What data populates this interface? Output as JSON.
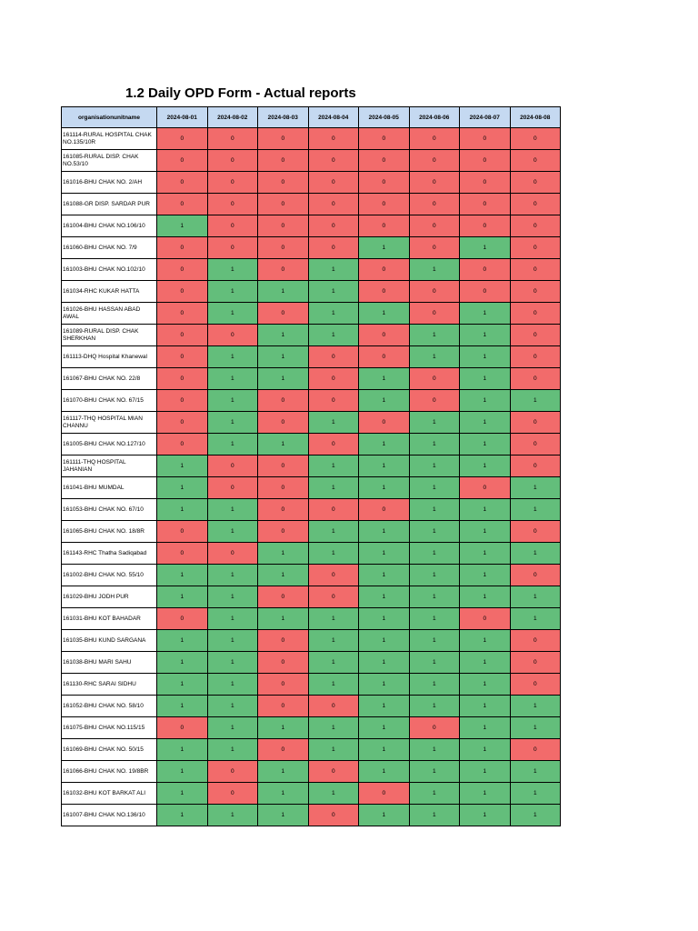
{
  "title": "1.2 Daily OPD Form - Actual reports",
  "colors": {
    "zero": "#f26b6b",
    "one": "#63be7b",
    "header": "#c5d9f1"
  },
  "columns": [
    "organisationunitname",
    "2024-08-01",
    "2024-08-02",
    "2024-08-03",
    "2024-08-04",
    "2024-08-05",
    "2024-08-06",
    "2024-08-07",
    "2024-08-08"
  ],
  "rows": [
    {
      "name": "161114-RURAL HOSPITAL CHAK NO.135/10R",
      "values": [
        0,
        0,
        0,
        0,
        0,
        0,
        0,
        0
      ]
    },
    {
      "name": "161085-RURAL DISP. CHAK NO.53/10",
      "values": [
        0,
        0,
        0,
        0,
        0,
        0,
        0,
        0
      ]
    },
    {
      "name": "161016-BHU CHAK NO.  2/AH",
      "values": [
        0,
        0,
        0,
        0,
        0,
        0,
        0,
        0
      ]
    },
    {
      "name": "161088-GR DISP. SARDAR PUR",
      "values": [
        0,
        0,
        0,
        0,
        0,
        0,
        0,
        0
      ]
    },
    {
      "name": "161004-BHU CHAK NO.106/10",
      "values": [
        1,
        0,
        0,
        0,
        0,
        0,
        0,
        0
      ]
    },
    {
      "name": "161060-BHU CHAK NO.  7/9",
      "values": [
        0,
        0,
        0,
        0,
        1,
        0,
        1,
        0
      ]
    },
    {
      "name": "161003-BHU CHAK NO.102/10",
      "values": [
        0,
        1,
        0,
        1,
        0,
        1,
        0,
        0
      ]
    },
    {
      "name": "161034-RHC KUKAR HATTA",
      "values": [
        0,
        1,
        1,
        1,
        0,
        0,
        0,
        0
      ]
    },
    {
      "name": "161026-BHU HASSAN ABAD AWAL",
      "values": [
        0,
        1,
        0,
        1,
        1,
        0,
        1,
        0
      ]
    },
    {
      "name": "161089-RURAL DISP. CHAK SHERKHAN",
      "values": [
        0,
        0,
        1,
        1,
        0,
        1,
        1,
        0
      ]
    },
    {
      "name": "161113-DHQ Hospital Khanewal",
      "values": [
        0,
        1,
        1,
        0,
        0,
        1,
        1,
        0
      ]
    },
    {
      "name": "161067-BHU CHAK NO. 22/8",
      "values": [
        0,
        1,
        1,
        0,
        1,
        0,
        1,
        0
      ]
    },
    {
      "name": "161070-BHU CHAK NO. 67/15",
      "values": [
        0,
        1,
        0,
        0,
        1,
        0,
        1,
        1
      ]
    },
    {
      "name": "161117-THQ HOSPITAL MIAN CHANNU",
      "values": [
        0,
        1,
        0,
        1,
        0,
        1,
        1,
        0
      ]
    },
    {
      "name": "161005-BHU CHAK NO.127/10",
      "values": [
        0,
        1,
        1,
        0,
        1,
        1,
        1,
        0
      ]
    },
    {
      "name": "161111-THQ HOSPITAL JAHANIAN",
      "values": [
        1,
        0,
        0,
        1,
        1,
        1,
        1,
        0
      ]
    },
    {
      "name": "161041-BHU MUMDAL",
      "values": [
        1,
        0,
        0,
        1,
        1,
        1,
        0,
        1
      ]
    },
    {
      "name": "161053-BHU CHAK NO. 67/10",
      "values": [
        1,
        1,
        0,
        0,
        0,
        1,
        1,
        1
      ]
    },
    {
      "name": "161065-BHU CHAK NO. 18/8R",
      "values": [
        0,
        1,
        0,
        1,
        1,
        1,
        1,
        0
      ]
    },
    {
      "name": "161143-RHC Thatha Sadiqabad",
      "values": [
        0,
        0,
        1,
        1,
        1,
        1,
        1,
        1
      ]
    },
    {
      "name": "161002-BHU CHAK NO. 55/10",
      "values": [
        1,
        1,
        1,
        0,
        1,
        1,
        1,
        0
      ]
    },
    {
      "name": "161029-BHU JODH PUR",
      "values": [
        1,
        1,
        0,
        0,
        1,
        1,
        1,
        1
      ]
    },
    {
      "name": "161031-BHU KOT BAHADAR",
      "values": [
        0,
        1,
        1,
        1,
        1,
        1,
        0,
        1
      ]
    },
    {
      "name": "161035-BHU KUND SARGANA",
      "values": [
        1,
        1,
        0,
        1,
        1,
        1,
        1,
        0
      ]
    },
    {
      "name": "161038-BHU MARI SAHU",
      "values": [
        1,
        1,
        0,
        1,
        1,
        1,
        1,
        0
      ]
    },
    {
      "name": "161130-RHC SARAI SIDHU",
      "values": [
        1,
        1,
        0,
        1,
        1,
        1,
        1,
        0
      ]
    },
    {
      "name": "161052-BHU CHAK NO. 58/10",
      "values": [
        1,
        1,
        0,
        0,
        1,
        1,
        1,
        1
      ]
    },
    {
      "name": "161075-BHU CHAK NO.115/15",
      "values": [
        0,
        1,
        1,
        1,
        1,
        0,
        1,
        1
      ]
    },
    {
      "name": "161069-BHU CHAK NO. 50/15",
      "values": [
        1,
        1,
        0,
        1,
        1,
        1,
        1,
        0
      ]
    },
    {
      "name": "161066-BHU CHAK NO. 19/8BR",
      "values": [
        1,
        0,
        1,
        0,
        1,
        1,
        1,
        1
      ]
    },
    {
      "name": "161032-BHU KOT BARKAT ALI",
      "values": [
        1,
        0,
        1,
        1,
        0,
        1,
        1,
        1
      ]
    },
    {
      "name": "161007-BHU CHAK NO.136/10",
      "values": [
        1,
        1,
        1,
        0,
        1,
        1,
        1,
        1
      ]
    }
  ]
}
